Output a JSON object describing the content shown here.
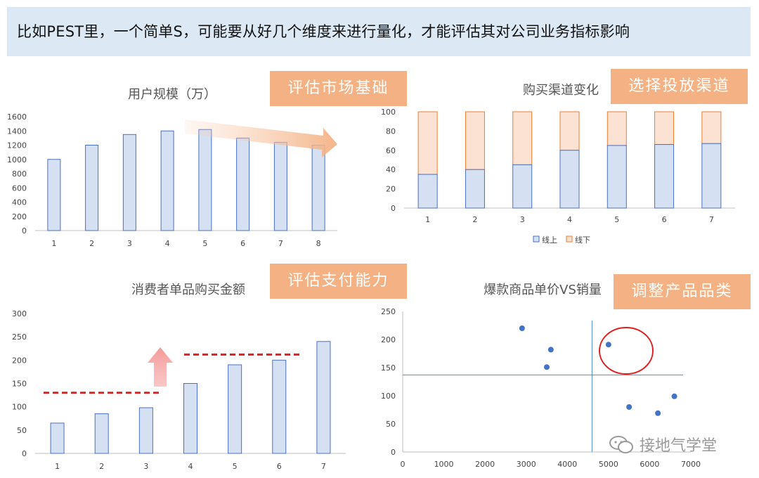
{
  "header": {
    "text": "比如PEST里，一个简单S，可能要从好几个维度来进行量化，才能评估其对公司业务指标影响"
  },
  "tags": {
    "c1": "评估市场基础",
    "c2": "选择投放渠道",
    "c3": "评估支付能力",
    "c4": "调整产品品类"
  },
  "watermark": {
    "text": "接地气学堂"
  },
  "colors": {
    "bar_fill": "#d6e0f3",
    "bar_stroke": "#4a6fc2",
    "offline_fill": "#fbe2d2",
    "offline_stroke": "#ed7d31",
    "dash": "#e02020",
    "tag": "#f4b183",
    "point": "#4472c4",
    "circle": "#e02020"
  },
  "chart_data": [
    {
      "type": "bar",
      "title": "用户规模（万）",
      "categories": [
        "1",
        "2",
        "3",
        "4",
        "5",
        "6",
        "7",
        "8"
      ],
      "values": [
        1000,
        1200,
        1350,
        1400,
        1420,
        1300,
        1240,
        1200
      ],
      "ylim": [
        0,
        1600
      ],
      "yticks": [
        "0",
        "200",
        "400",
        "600",
        "800",
        "1000",
        "1200",
        "1400",
        "1600"
      ],
      "annotation": "downward trend arrow over bars 5-8"
    },
    {
      "type": "bar",
      "stacked": true,
      "title": "购买渠道变化",
      "categories": [
        "1",
        "2",
        "3",
        "4",
        "5",
        "6",
        "7"
      ],
      "series": [
        {
          "name": "线上",
          "values": [
            35,
            40,
            45,
            60,
            65,
            66,
            67
          ]
        },
        {
          "name": "线下",
          "values": [
            65,
            60,
            55,
            40,
            35,
            34,
            33
          ]
        }
      ],
      "ylim": [
        0,
        100
      ],
      "yticks": [
        "0",
        "20",
        "40",
        "60",
        "80",
        "100"
      ],
      "legend": "bottom"
    },
    {
      "type": "bar",
      "title": "消费者单品购买金额",
      "categories": [
        "1",
        "2",
        "3",
        "4",
        "5",
        "6",
        "7"
      ],
      "values": [
        65,
        85,
        98,
        150,
        190,
        200,
        240
      ],
      "ylim": [
        0,
        300
      ],
      "yticks": [
        "0",
        "50",
        "100",
        "150",
        "200",
        "250",
        "300"
      ],
      "annotation": "dashed level lines at ~130 (bars 1-3) and ~212 (bars 4-6), upward arrow between"
    },
    {
      "type": "scatter",
      "title": "爆款商品单价VS销量",
      "points": [
        [
          2900,
          220
        ],
        [
          3600,
          182
        ],
        [
          3500,
          151
        ],
        [
          5000,
          191
        ],
        [
          5500,
          80
        ],
        [
          6200,
          69
        ],
        [
          6600,
          99
        ]
      ],
      "xlim": [
        0,
        7000
      ],
      "ylim": [
        0,
        250
      ],
      "xticks": [
        "0",
        "1000",
        "2000",
        "3000",
        "4000",
        "5000",
        "6000",
        "7000"
      ],
      "yticks": [
        "0",
        "50",
        "100",
        "150",
        "200",
        "250"
      ],
      "reference_lines": {
        "x": 4600,
        "y": 137
      },
      "annotation": "red circle around point (5000, 191)"
    }
  ]
}
